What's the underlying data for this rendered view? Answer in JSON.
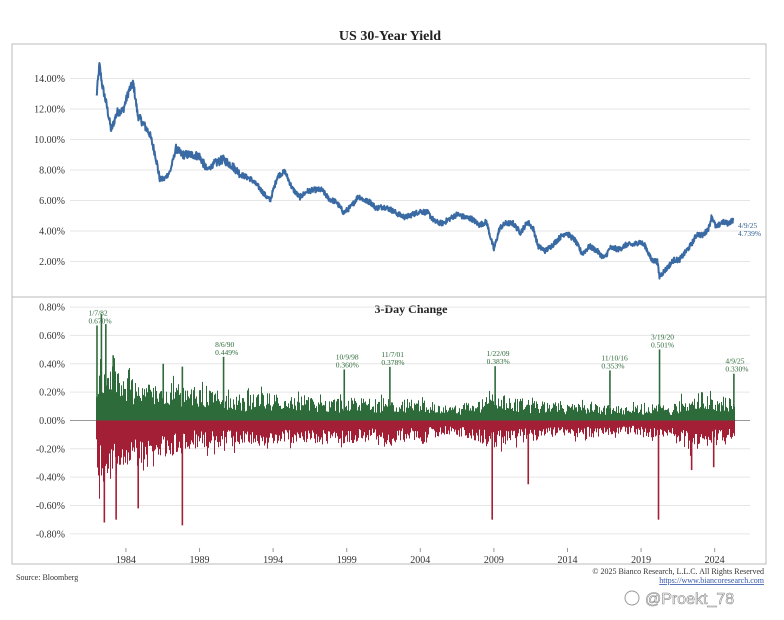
{
  "chart_data": [
    {
      "type": "line",
      "title": "US 30-Year Yield",
      "xlabel": "",
      "ylabel": "",
      "x_ticks": [
        "1984",
        "1989",
        "1994",
        "1999",
        "2004",
        "2009",
        "2014",
        "2019",
        "2024"
      ],
      "y_ticks": [
        "2.00%",
        "4.00%",
        "6.00%",
        "8.00%",
        "10.00%",
        "12.00%",
        "14.00%"
      ],
      "ylim": [
        0,
        16
      ],
      "xlim": [
        1980.2,
        2026.4
      ],
      "series": [
        {
          "color": "#3a6aa3",
          "x": [
            1982.0,
            1982.2,
            1982.4,
            1982.7,
            1983.0,
            1983.4,
            1983.8,
            1984.2,
            1984.5,
            1984.8,
            1985.2,
            1985.6,
            1986.0,
            1986.3,
            1986.6,
            1987.0,
            1987.4,
            1987.8,
            1988.2,
            1988.6,
            1989.0,
            1989.5,
            1990.0,
            1990.6,
            1991.2,
            1991.8,
            1992.5,
            1993.0,
            1993.5,
            1993.8,
            1994.3,
            1994.8,
            1995.3,
            1995.8,
            1996.3,
            1996.8,
            1997.3,
            1997.8,
            1998.3,
            1998.8,
            1999.3,
            1999.8,
            2000.2,
            2000.6,
            2001.0,
            2001.5,
            2002.0,
            2002.5,
            2003.0,
            2003.5,
            2004.0,
            2004.5,
            2005.0,
            2005.5,
            2006.0,
            2006.5,
            2007.0,
            2007.5,
            2008.0,
            2008.5,
            2008.85,
            2009.0,
            2009.4,
            2009.8,
            2010.3,
            2010.8,
            2011.3,
            2011.7,
            2012.0,
            2012.5,
            2013.0,
            2013.5,
            2013.9,
            2014.5,
            2015.0,
            2015.5,
            2016.0,
            2016.5,
            2016.9,
            2017.5,
            2018.0,
            2018.5,
            2018.9,
            2019.3,
            2019.7,
            2020.1,
            2020.25,
            2020.5,
            2020.8,
            2021.2,
            2021.6,
            2022.0,
            2022.4,
            2022.8,
            2023.2,
            2023.6,
            2023.8,
            2024.1,
            2024.5,
            2024.9,
            2025.27
          ],
          "y": [
            12.8,
            14.9,
            13.5,
            12.2,
            10.6,
            11.8,
            11.9,
            13.2,
            13.7,
            11.6,
            11.0,
            10.4,
            9.0,
            7.4,
            7.4,
            7.9,
            9.4,
            9.0,
            9.0,
            9.0,
            8.9,
            8.0,
            8.4,
            8.7,
            8.3,
            7.7,
            7.4,
            6.9,
            6.3,
            6.0,
            7.6,
            7.9,
            6.8,
            6.2,
            6.6,
            6.7,
            6.7,
            6.1,
            5.9,
            5.2,
            5.6,
            6.3,
            6.0,
            5.9,
            5.5,
            5.6,
            5.4,
            5.1,
            4.9,
            5.1,
            5.3,
            5.2,
            4.6,
            4.5,
            4.8,
            5.1,
            4.9,
            4.8,
            4.4,
            4.6,
            3.3,
            2.8,
            4.2,
            4.5,
            4.5,
            3.9,
            4.6,
            4.1,
            3.0,
            2.7,
            3.1,
            3.6,
            3.9,
            3.4,
            2.5,
            3.0,
            2.7,
            2.2,
            2.9,
            2.8,
            3.1,
            3.1,
            3.3,
            3.0,
            2.1,
            2.0,
            1.0,
            1.3,
            1.6,
            2.1,
            2.1,
            2.6,
            3.1,
            3.8,
            3.7,
            4.2,
            5.0,
            4.2,
            4.6,
            4.5,
            4.739
          ]
        }
      ],
      "annotations": [
        {
          "date": "4/9/25",
          "value": "4.739%",
          "x": 2025.27,
          "y": 4.739
        }
      ]
    },
    {
      "type": "bar",
      "title": "3-Day Change",
      "xlabel": "",
      "ylabel": "",
      "x_ticks": [
        "1984",
        "1989",
        "1994",
        "1999",
        "2004",
        "2009",
        "2014",
        "2019",
        "2024"
      ],
      "y_ticks": [
        "-0.80%",
        "-0.60%",
        "-0.40%",
        "-0.20%",
        "0.00%",
        "0.20%",
        "0.40%",
        "0.60%",
        "0.80%"
      ],
      "ylim": [
        -0.9,
        0.85
      ],
      "xlim": [
        1980.2,
        2026.4
      ],
      "colors": {
        "positive": "#2e6b3a",
        "negative": "#a31f35"
      },
      "envelope": {
        "x": [
          1982.0,
          1983.0,
          1984.0,
          1985.0,
          1986.0,
          1987.0,
          1988.0,
          1990.0,
          1992.0,
          1994.0,
          1996.0,
          1998.0,
          2000.0,
          2002.0,
          2004.0,
          2006.0,
          2008.0,
          2009.0,
          2010.0,
          2012.0,
          2014.0,
          2016.0,
          2018.0,
          2020.0,
          2021.0,
          2022.0,
          2023.0,
          2024.0,
          2025.3
        ],
        "pos": [
          0.45,
          0.4,
          0.33,
          0.3,
          0.26,
          0.3,
          0.22,
          0.22,
          0.18,
          0.2,
          0.17,
          0.16,
          0.16,
          0.16,
          0.15,
          0.1,
          0.15,
          0.2,
          0.16,
          0.14,
          0.12,
          0.12,
          0.1,
          0.12,
          0.1,
          0.18,
          0.2,
          0.17,
          0.17
        ],
        "neg": [
          0.5,
          0.42,
          0.34,
          0.3,
          0.26,
          0.28,
          0.2,
          0.2,
          0.18,
          0.18,
          0.16,
          0.17,
          0.16,
          0.17,
          0.14,
          0.1,
          0.16,
          0.21,
          0.16,
          0.14,
          0.12,
          0.12,
          0.1,
          0.14,
          0.1,
          0.2,
          0.2,
          0.17,
          0.17
        ]
      },
      "spikes": [
        {
          "x": 1982.0,
          "value": 0.67,
          "date": "1/7/82",
          "label": "0.670%"
        },
        {
          "x": 1990.6,
          "value": 0.449,
          "date": "8/6/90",
          "label": "0.449%"
        },
        {
          "x": 1998.8,
          "value": 0.36,
          "date": "10/9/98",
          "label": "0.360%"
        },
        {
          "x": 2001.9,
          "value": 0.378,
          "date": "11/7/01",
          "label": "0.378%"
        },
        {
          "x": 2009.05,
          "value": 0.383,
          "date": "1/22/09",
          "label": "0.383%"
        },
        {
          "x": 2016.85,
          "value": 0.353,
          "date": "11/10/16",
          "label": "0.353%"
        },
        {
          "x": 2020.22,
          "value": 0.501,
          "date": "3/19/20",
          "label": "0.501%"
        },
        {
          "x": 2025.27,
          "value": 0.33,
          "date": "4/9/25",
          "label": "0.330%"
        },
        {
          "x": 1982.3,
          "value": 0.75
        },
        {
          "x": 1982.6,
          "value": 0.68
        },
        {
          "x": 1983.1,
          "value": 0.46
        },
        {
          "x": 1986.5,
          "value": 0.4
        },
        {
          "x": 1987.8,
          "value": 0.38
        },
        {
          "x": 1982.5,
          "value": -0.72
        },
        {
          "x": 1983.3,
          "value": -0.7
        },
        {
          "x": 1984.8,
          "value": -0.62
        },
        {
          "x": 1987.8,
          "value": -0.74
        },
        {
          "x": 2008.85,
          "value": -0.7
        },
        {
          "x": 2011.3,
          "value": -0.45
        },
        {
          "x": 2020.15,
          "value": -0.7
        },
        {
          "x": 2022.4,
          "value": -0.35
        },
        {
          "x": 2023.9,
          "value": -0.33
        }
      ]
    }
  ],
  "footer": {
    "source": "Source: Bloomberg",
    "copyright": "© 2025 Bianco Research, L.L.C. All Rights Reserved",
    "url": "https://www.biancoresearch.com"
  },
  "watermark": "@Proekt_78"
}
